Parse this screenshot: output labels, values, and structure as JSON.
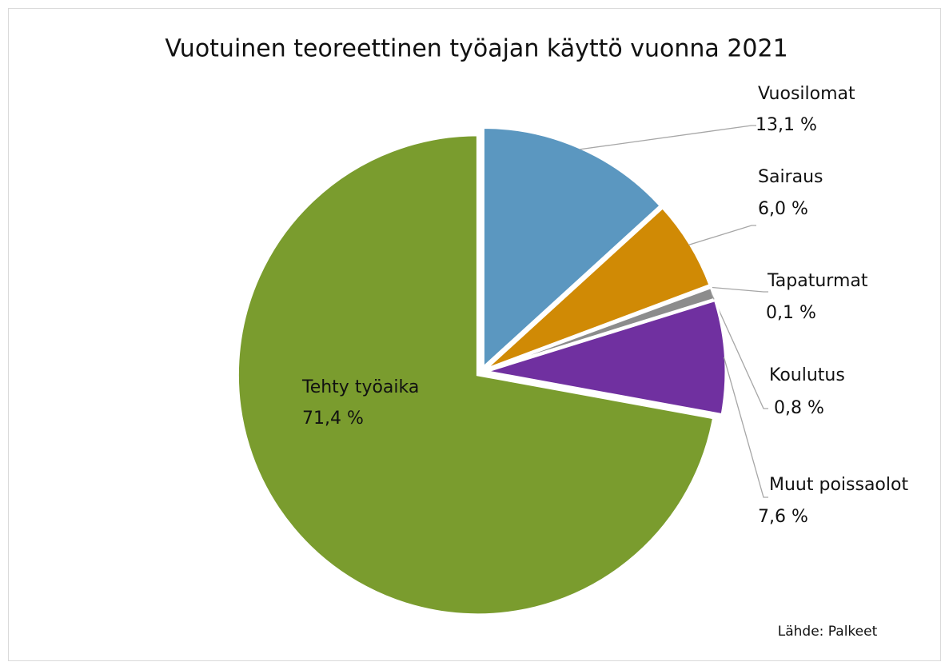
{
  "chart_data": {
    "type": "pie",
    "title": "Vuotuinen teoreettinen työajan käyttö vuonna 2021",
    "categories": [
      "Vuosilomat",
      "Sairaus",
      "Tapaturmat",
      "Koulutus",
      "Muut poissaolot",
      "Tehty työaika"
    ],
    "values": [
      13.1,
      6.0,
      0.1,
      0.8,
      7.6,
      71.4
    ],
    "value_labels": [
      "13,1 %",
      "6,0 %",
      "0,1 %",
      "0,8 %",
      "7,6 %",
      "71,4 %"
    ],
    "colors": [
      "#5b97c0",
      "#d08a05",
      "#a6a6a6",
      "#8c8c8c",
      "#7030a0",
      "#7a9c2e"
    ],
    "source": "Lähde: Palkeet"
  }
}
